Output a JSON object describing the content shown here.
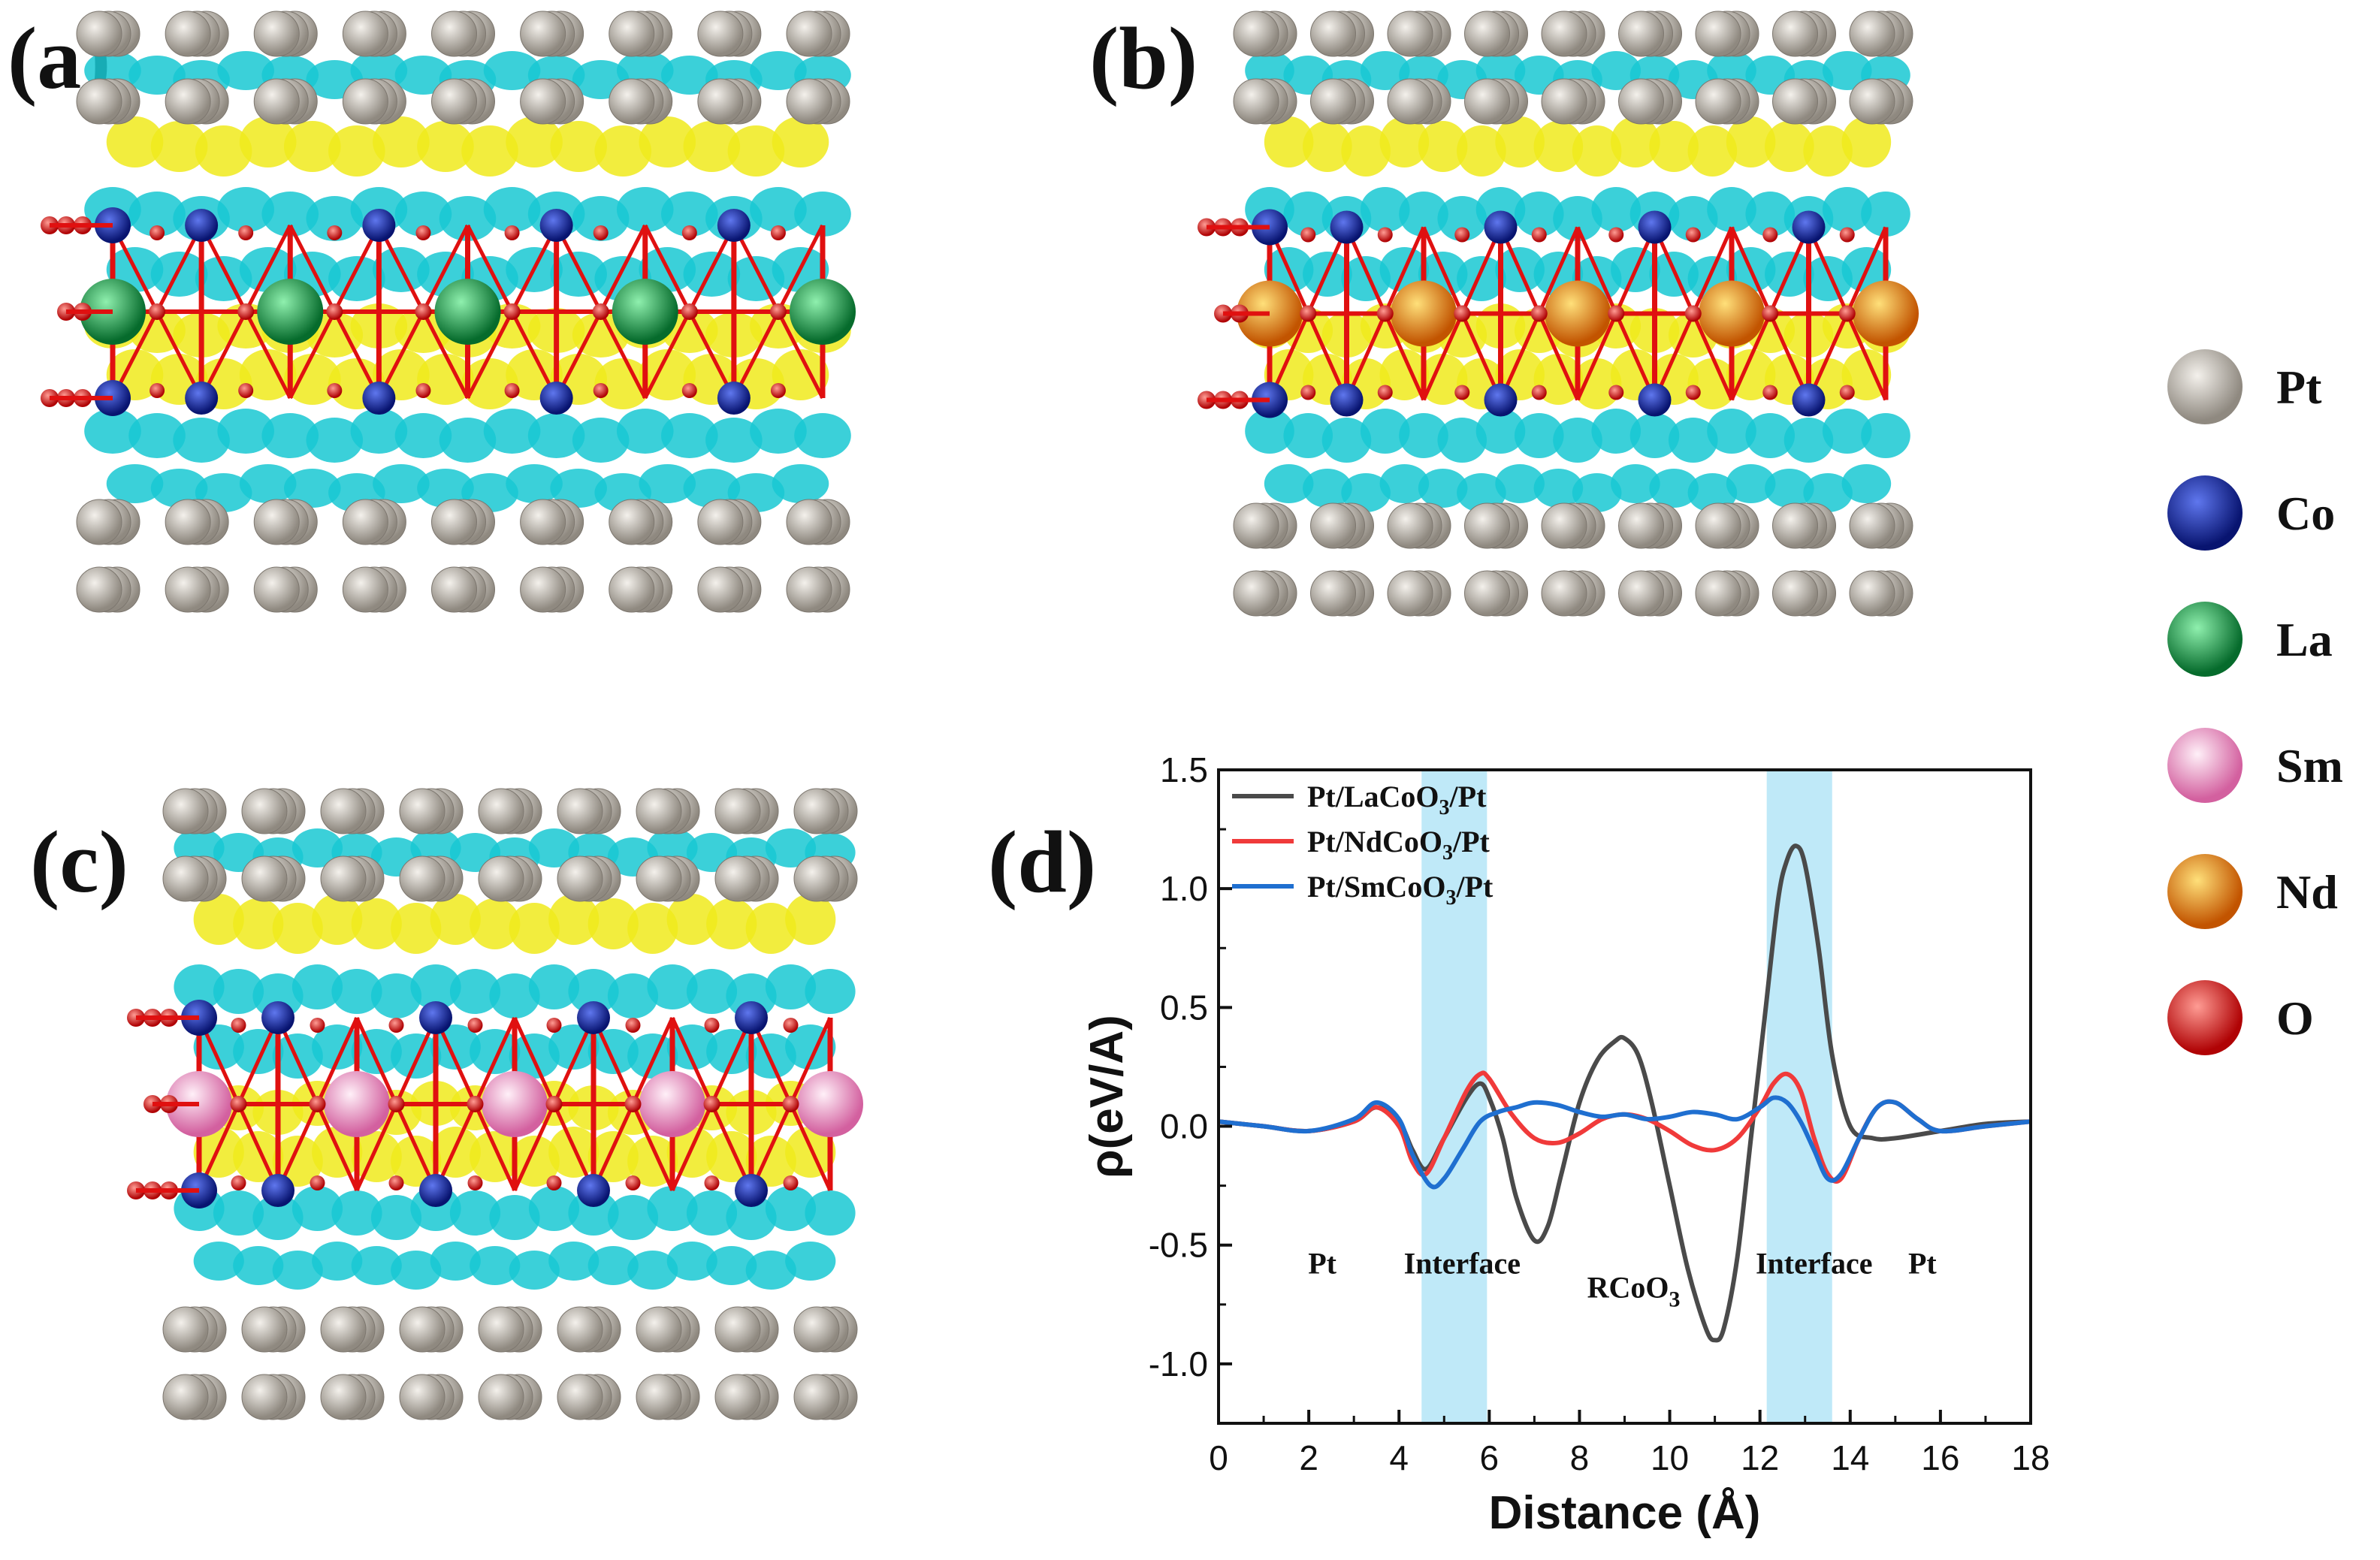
{
  "panels": {
    "a": "(a)",
    "b": "(b)",
    "c": "(c)",
    "d": "(d)"
  },
  "atom_legend": [
    {
      "label": "Pt",
      "color": "#a9a39b",
      "highlight": "#f2efe9"
    },
    {
      "label": "Co",
      "color": "#0b1e8c",
      "highlight": "#4f67e0"
    },
    {
      "label": "La",
      "color": "#0b8a3a",
      "highlight": "#7ee8a0"
    },
    {
      "label": "Sm",
      "color": "#e37fb8",
      "highlight": "#fde6f3"
    },
    {
      "label": "Nd",
      "color": "#d86a06",
      "highlight": "#ffd060"
    },
    {
      "label": "O",
      "color": "#d4080a",
      "highlight": "#ff8a80"
    }
  ],
  "isosurface_colors": {
    "accumulation": "#f0ea1c",
    "depletion": "#19c8d2"
  },
  "chart_data": {
    "type": "line",
    "xlabel": "Distance (Å)",
    "ylabel": "ρ(eV/A)",
    "xlim": [
      0,
      18
    ],
    "ylim": [
      -1.25,
      1.5
    ],
    "xticks": [
      0,
      2,
      4,
      6,
      8,
      10,
      12,
      14,
      16,
      18
    ],
    "yticks": [
      -1.0,
      -0.5,
      0.0,
      0.5,
      1.0,
      1.5
    ],
    "ytick_labels": [
      "-1.0",
      "-0.5",
      "0.0",
      "0.5",
      "1.0",
      "1.5"
    ],
    "shaded_regions": [
      [
        4.5,
        5.95
      ],
      [
        12.15,
        13.6
      ]
    ],
    "shade_color": "#bfe9f8",
    "region_labels": [
      {
        "text": "Pt",
        "x": 2.3,
        "y": -0.62
      },
      {
        "text": "Interface",
        "x": 5.4,
        "y": -0.62
      },
      {
        "text": "RCoO",
        "sub": "3",
        "x": 9.2,
        "y": -0.72
      },
      {
        "text": "Interface",
        "x": 13.2,
        "y": -0.62
      },
      {
        "text": "Pt",
        "x": 15.6,
        "y": -0.62
      }
    ],
    "legend": [
      {
        "pre": "Pt/LaCoO",
        "sub": "3",
        "post": "/Pt"
      },
      {
        "pre": "Pt/NdCoO",
        "sub": "3",
        "post": "/Pt"
      },
      {
        "pre": "Pt/SmCoO",
        "sub": "3",
        "post": "/Pt"
      }
    ],
    "series": [
      {
        "name": "Pt/LaCoO3/Pt",
        "color": "#4a4a4a",
        "x": [
          0,
          1,
          2,
          3,
          3.5,
          4,
          4.3,
          4.6,
          5,
          5.5,
          5.8,
          6,
          6.3,
          6.6,
          7,
          7.3,
          7.6,
          8,
          8.4,
          8.8,
          9,
          9.3,
          9.6,
          10,
          10.4,
          10.8,
          11,
          11.2,
          11.5,
          11.8,
          12.1,
          12.4,
          12.6,
          12.8,
          13,
          13.3,
          13.6,
          14,
          14.5,
          15,
          16,
          17,
          18
        ],
        "y": [
          0.02,
          0.0,
          -0.02,
          0.02,
          0.08,
          0.02,
          -0.1,
          -0.18,
          -0.05,
          0.12,
          0.18,
          0.12,
          -0.05,
          -0.3,
          -0.48,
          -0.42,
          -0.2,
          0.1,
          0.28,
          0.36,
          0.37,
          0.3,
          0.1,
          -0.25,
          -0.6,
          -0.85,
          -0.9,
          -0.85,
          -0.55,
          -0.05,
          0.45,
          0.95,
          1.12,
          1.18,
          1.1,
          0.75,
          0.3,
          0.0,
          -0.05,
          -0.05,
          -0.02,
          0.01,
          0.02
        ]
      },
      {
        "name": "Pt/NdCoO3/Pt",
        "color": "#f03a3a",
        "x": [
          0,
          1,
          2,
          3,
          3.5,
          4,
          4.3,
          4.6,
          5,
          5.5,
          5.8,
          6,
          6.5,
          7,
          7.5,
          8,
          8.5,
          9,
          9.5,
          10,
          10.5,
          11,
          11.5,
          12,
          12.3,
          12.6,
          12.9,
          13.2,
          13.5,
          13.8,
          14.2,
          14.6,
          15,
          15.5,
          16,
          17,
          18
        ],
        "y": [
          0.02,
          0.0,
          -0.02,
          0.02,
          0.08,
          0.0,
          -0.15,
          -0.2,
          -0.05,
          0.15,
          0.22,
          0.2,
          0.05,
          -0.05,
          -0.07,
          -0.03,
          0.03,
          0.05,
          0.03,
          -0.02,
          -0.08,
          -0.1,
          -0.05,
          0.08,
          0.18,
          0.22,
          0.15,
          -0.05,
          -0.2,
          -0.22,
          -0.05,
          0.08,
          0.1,
          0.03,
          -0.02,
          0.0,
          0.02
        ]
      },
      {
        "name": "Pt/SmCoO3/Pt",
        "color": "#1f6fd0",
        "x": [
          0,
          1,
          2,
          3,
          3.5,
          4,
          4.3,
          4.7,
          5,
          5.4,
          5.8,
          6.2,
          6.6,
          7,
          7.5,
          8,
          8.5,
          9,
          9.5,
          10,
          10.5,
          11,
          11.5,
          12,
          12.3,
          12.6,
          12.9,
          13.2,
          13.5,
          13.8,
          14.2,
          14.6,
          15,
          15.5,
          16,
          17,
          18
        ],
        "y": [
          0.02,
          0.0,
          -0.02,
          0.03,
          0.1,
          0.03,
          -0.12,
          -0.25,
          -0.22,
          -0.1,
          0.02,
          0.06,
          0.08,
          0.1,
          0.09,
          0.06,
          0.04,
          0.05,
          0.03,
          0.04,
          0.06,
          0.05,
          0.03,
          0.08,
          0.12,
          0.1,
          0.02,
          -0.1,
          -0.22,
          -0.2,
          -0.05,
          0.08,
          0.1,
          0.03,
          -0.02,
          0.0,
          0.02
        ]
      }
    ]
  }
}
